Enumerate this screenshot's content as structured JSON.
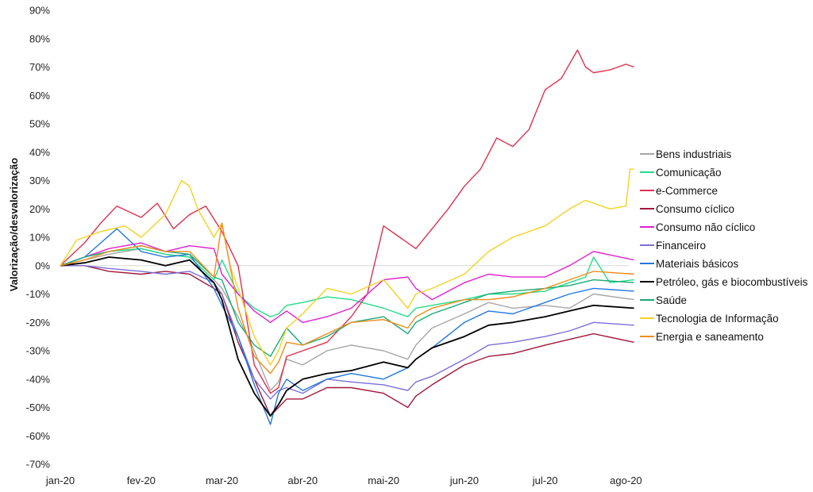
{
  "chart_data": {
    "type": "line",
    "title": "",
    "xlabel": "",
    "ylabel": "Valorização/desvalorização",
    "x_ticks": [
      "jan-20",
      "fev-20",
      "mar-20",
      "abr-20",
      "mai-20",
      "jun-20",
      "jul-20",
      "ago-20"
    ],
    "y_ticks": [
      "90%",
      "80%",
      "70%",
      "60%",
      "50%",
      "40%",
      "30%",
      "20%",
      "10%",
      "0%",
      "-10%",
      "-20%",
      "-30%",
      "-40%",
      "-50%",
      "-60%",
      "-70%"
    ],
    "ylim": [
      -70,
      90
    ],
    "xlim": [
      0,
      7
    ],
    "grid": false,
    "legend_position": "right",
    "series": [
      {
        "name": "Bens industriais",
        "color": "#a6a6a6",
        "x": [
          0,
          0.3,
          0.6,
          1,
          1.3,
          1.6,
          1.9,
          2,
          2.2,
          2.4,
          2.6,
          2.7,
          2.8,
          3,
          3.3,
          3.6,
          4,
          4.3,
          4.4,
          4.6,
          5,
          5.3,
          5.6,
          6,
          6.3,
          6.6,
          7.1
        ],
        "y": [
          0,
          2,
          4,
          6,
          4,
          3,
          -5,
          -8,
          -18,
          -30,
          -44,
          -41,
          -33,
          -35,
          -30,
          -28,
          -30,
          -33,
          -28,
          -22,
          -17,
          -13,
          -15,
          -14,
          -15,
          -10,
          -12
        ]
      },
      {
        "name": "Comunicação",
        "color": "#22dd88",
        "x": [
          0,
          0.3,
          0.6,
          1,
          1.3,
          1.6,
          1.9,
          2,
          2.2,
          2.4,
          2.6,
          2.7,
          2.8,
          3,
          3.3,
          3.6,
          4,
          4.3,
          4.4,
          4.6,
          5,
          5.3,
          5.6,
          6,
          6.3,
          6.5,
          6.6,
          6.8,
          7.1
        ],
        "y": [
          0,
          3,
          5,
          6,
          4,
          3,
          -5,
          2,
          -10,
          -15,
          -18,
          -17,
          -14,
          -13,
          -11,
          -12,
          -15,
          -18,
          -15,
          -14,
          -12,
          -10,
          -10,
          -9,
          -6,
          -4,
          3,
          -6,
          -5
        ]
      },
      {
        "name": "e-Commerce",
        "color": "#e0304e",
        "x": [
          0,
          0.3,
          0.5,
          0.7,
          1,
          1.2,
          1.4,
          1.6,
          1.8,
          2,
          2.2,
          2.4,
          2.6,
          2.7,
          2.8,
          3,
          3.3,
          3.6,
          3.8,
          4,
          4.2,
          4.4,
          4.6,
          4.8,
          5,
          5.2,
          5.4,
          5.6,
          5.8,
          6,
          6.2,
          6.4,
          6.5,
          6.6,
          6.8,
          7,
          7.1
        ],
        "y": [
          0,
          8,
          15,
          21,
          17,
          22,
          13,
          18,
          21,
          12,
          0,
          -35,
          -45,
          -43,
          -32,
          -30,
          -27,
          -18,
          -10,
          14,
          10,
          6,
          13,
          20,
          28,
          34,
          45,
          42,
          48,
          62,
          66,
          76,
          70,
          68,
          69,
          71,
          70
        ]
      },
      {
        "name": "Consumo cíclico",
        "color": "#a3173a",
        "x": [
          0,
          0.3,
          0.6,
          1,
          1.3,
          1.6,
          1.9,
          2,
          2.2,
          2.4,
          2.6,
          2.7,
          2.8,
          3,
          3.3,
          3.6,
          4,
          4.3,
          4.4,
          4.6,
          5,
          5.3,
          5.6,
          6,
          6.3,
          6.6,
          7.1
        ],
        "y": [
          0,
          0,
          -2,
          -3,
          -2,
          -3,
          -8,
          -10,
          -27,
          -40,
          -53,
          -50,
          -47,
          -47,
          -43,
          -43,
          -45,
          -50,
          -46,
          -42,
          -35,
          -32,
          -31,
          -28,
          -26,
          -24,
          -27
        ]
      },
      {
        "name": "Consumo não cíclico",
        "color": "#e020d0",
        "x": [
          0,
          0.3,
          0.6,
          1,
          1.3,
          1.6,
          1.9,
          2,
          2.2,
          2.4,
          2.6,
          2.7,
          2.8,
          3,
          3.3,
          3.6,
          4,
          4.3,
          4.4,
          4.6,
          5,
          5.3,
          5.6,
          6,
          6.3,
          6.6,
          7.1
        ],
        "y": [
          0,
          3,
          6,
          8,
          5,
          7,
          6,
          -3,
          -10,
          -16,
          -20,
          -18,
          -16,
          -20,
          -18,
          -15,
          -5,
          -4,
          -8,
          -12,
          -6,
          -3,
          -4,
          -4,
          0,
          5,
          2
        ]
      },
      {
        "name": "Financeiro",
        "color": "#7b6fd6",
        "x": [
          0,
          0.3,
          0.6,
          1,
          1.3,
          1.6,
          1.9,
          2,
          2.2,
          2.4,
          2.6,
          2.7,
          2.8,
          3,
          3.3,
          3.6,
          4,
          4.3,
          4.4,
          4.6,
          5,
          5.3,
          5.6,
          6,
          6.3,
          6.6,
          7.1
        ],
        "y": [
          0,
          0,
          -1,
          -2,
          -3,
          -2,
          -6,
          -10,
          -25,
          -40,
          -47,
          -44,
          -43,
          -45,
          -40,
          -41,
          -42,
          -44,
          -41,
          -39,
          -33,
          -28,
          -27,
          -25,
          -23,
          -20,
          -21
        ]
      },
      {
        "name": "Materiais básicos",
        "color": "#2277dd",
        "x": [
          0,
          0.3,
          0.5,
          0.7,
          1,
          1.3,
          1.6,
          1.9,
          2,
          2.2,
          2.4,
          2.6,
          2.7,
          2.8,
          3,
          3.3,
          3.6,
          4,
          4.3,
          4.4,
          4.6,
          5,
          5.3,
          5.6,
          6,
          6.3,
          6.6,
          7.1
        ],
        "y": [
          0,
          3,
          8,
          13,
          5,
          3,
          4,
          -8,
          -14,
          -25,
          -42,
          -56,
          -45,
          -40,
          -44,
          -40,
          -38,
          -40,
          -36,
          -33,
          -29,
          -20,
          -16,
          -17,
          -13,
          -10,
          -8,
          -9
        ]
      },
      {
        "name": "Petróleo, gás e biocombustíveis",
        "color": "#000000",
        "x": [
          0,
          0.3,
          0.6,
          1,
          1.3,
          1.6,
          1.9,
          2,
          2.2,
          2.4,
          2.6,
          2.7,
          2.8,
          3,
          3.3,
          3.6,
          4,
          4.3,
          4.4,
          4.6,
          5,
          5.3,
          5.6,
          6,
          6.3,
          6.6,
          7.1
        ],
        "y": [
          0,
          1,
          3,
          2,
          0,
          2,
          -6,
          -12,
          -33,
          -45,
          -53,
          -49,
          -44,
          -40,
          -38,
          -37,
          -34,
          -36,
          -33,
          -29,
          -25,
          -21,
          -20,
          -18,
          -16,
          -14,
          -15
        ]
      },
      {
        "name": "Saúde",
        "color": "#1aaa77",
        "x": [
          0,
          0.3,
          0.6,
          1,
          1.3,
          1.6,
          1.9,
          2,
          2.2,
          2.4,
          2.6,
          2.7,
          2.8,
          3,
          3.3,
          3.6,
          4,
          4.3,
          4.4,
          4.6,
          5,
          5.3,
          5.6,
          6,
          6.3,
          6.6,
          7.1
        ],
        "y": [
          0,
          3,
          5,
          7,
          5,
          4,
          -4,
          -5,
          -20,
          -28,
          -32,
          -27,
          -22,
          -28,
          -25,
          -20,
          -18,
          -24,
          -20,
          -17,
          -13,
          -10,
          -9,
          -8,
          -7,
          -5,
          -6
        ]
      },
      {
        "name": "Tecnologia de Informação",
        "color": "#f2d322",
        "x": [
          0,
          0.2,
          0.5,
          0.8,
          1,
          1.3,
          1.5,
          1.6,
          1.7,
          1.9,
          2,
          2.1,
          2.2,
          2.4,
          2.6,
          2.7,
          2.8,
          3,
          3.3,
          3.6,
          4,
          4.3,
          4.4,
          4.6,
          5,
          5.3,
          5.6,
          6,
          6.3,
          6.5,
          6.6,
          6.8,
          7,
          7.05,
          7.1
        ],
        "y": [
          0,
          9,
          12,
          14,
          10,
          18,
          30,
          28,
          20,
          10,
          15,
          0,
          -8,
          -25,
          -35,
          -30,
          -22,
          -17,
          -8,
          -10,
          -5,
          -15,
          -10,
          -8,
          -3,
          5,
          10,
          14,
          20,
          23,
          22,
          20,
          21,
          34,
          34
        ]
      },
      {
        "name": "Energia e saneamento",
        "color": "#f08c1a",
        "x": [
          0,
          0.3,
          0.6,
          1,
          1.3,
          1.6,
          1.9,
          2,
          2.2,
          2.4,
          2.6,
          2.7,
          2.8,
          3,
          3.3,
          3.6,
          4,
          4.3,
          4.4,
          4.6,
          5,
          5.3,
          5.6,
          6,
          6.3,
          6.6,
          7.1
        ],
        "y": [
          0,
          2,
          5,
          7,
          5,
          5,
          -4,
          15,
          -15,
          -32,
          -38,
          -34,
          -27,
          -28,
          -24,
          -20,
          -19,
          -22,
          -18,
          -15,
          -12,
          -12,
          -11,
          -8,
          -5,
          -2,
          -3
        ]
      }
    ]
  }
}
